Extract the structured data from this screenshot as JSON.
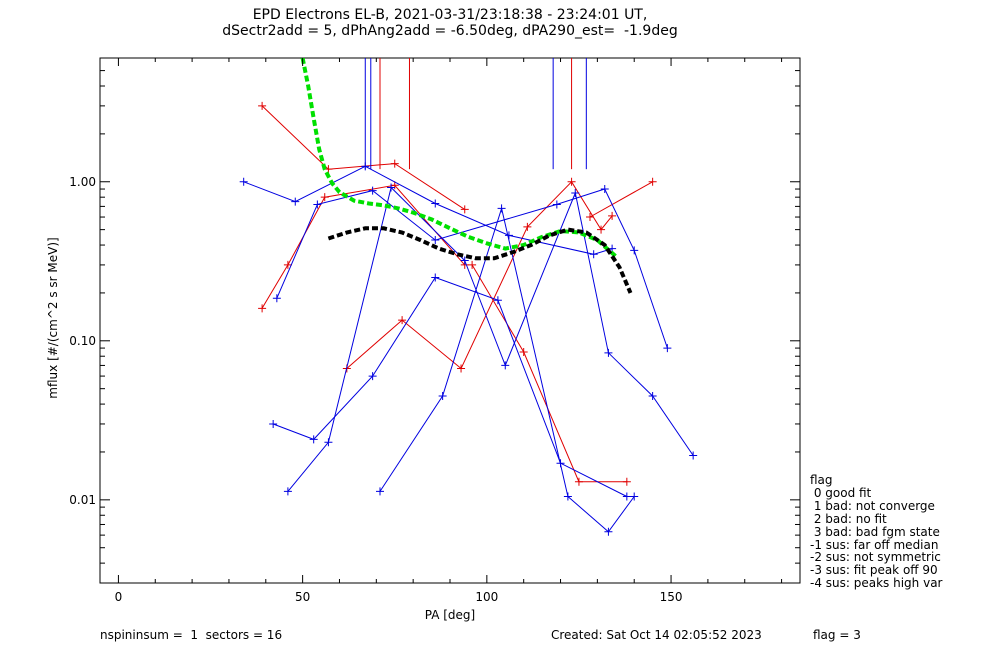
{
  "title_line1": "EPD Electrons EL-B, 2021-03-31/23:18:38 - 23:24:01 UT,",
  "title_line2": "dSectr2add = 5, dPhAng2add = -6.50deg, dPA290_est=  -1.9deg",
  "footer": {
    "left": "nspininsum =  1  sectors = 16",
    "created": "Created: Sat Oct 14 02:05:52 2023",
    "flag": "flag = 3"
  },
  "legend": {
    "title": "flag",
    "items": [
      " 0 good fit",
      " 1 bad: not converge",
      " 2 bad: no fit",
      " 3 bad: bad fgm state",
      "-1 sus: far off median",
      "-2 sus: not symmetric",
      "-3 sus: fit peak off 90",
      "-4 sus: peaks high var"
    ]
  },
  "chart_data": {
    "type": "line",
    "xlabel": "PA [deg]",
    "ylabel": "mflux [#/(cm^2 s sr MeV)]",
    "xlim": [
      -5,
      185
    ],
    "ylim": [
      0.003,
      6.0
    ],
    "yscale": "log",
    "xticks": [
      0,
      50,
      100,
      150
    ],
    "yticks": [
      {
        "value": 0.01,
        "label": "0.01"
      },
      {
        "value": 0.1,
        "label": "0.10"
      },
      {
        "value": 1.0,
        "label": "1.00"
      }
    ],
    "colors": {
      "red": "#e00000",
      "blue": "#0000e0",
      "green": "#00e000",
      "black": "#000000"
    },
    "series": [
      {
        "color": "red",
        "x": [
          39,
          46,
          56,
          75,
          94
        ],
        "y": [
          0.16,
          0.3,
          0.8,
          0.95,
          0.3
        ]
      },
      {
        "color": "red",
        "x": [
          39,
          57,
          75,
          94
        ],
        "y": [
          3.0,
          1.2,
          1.3,
          0.67
        ]
      },
      {
        "color": "red",
        "x": [
          62,
          77,
          93,
          111,
          123,
          131,
          134
        ],
        "y": [
          0.067,
          0.135,
          0.067,
          0.52,
          1.0,
          0.5,
          0.61
        ]
      },
      {
        "color": "red",
        "x": [
          96,
          110,
          125,
          138
        ],
        "y": [
          0.3,
          0.085,
          0.013,
          0.013
        ]
      },
      {
        "color": "red",
        "x": [
          128,
          145
        ],
        "y": [
          0.6,
          1.0
        ]
      },
      {
        "color": "blue",
        "x": [
          34,
          48,
          67,
          86,
          106,
          129,
          134
        ],
        "y": [
          1.0,
          0.75,
          1.25,
          0.73,
          0.46,
          0.35,
          0.38
        ]
      },
      {
        "color": "blue",
        "x": [
          43,
          54,
          69,
          86,
          119,
          132,
          140,
          149
        ],
        "y": [
          0.185,
          0.72,
          0.88,
          0.43,
          0.72,
          0.9,
          0.37,
          0.09
        ]
      },
      {
        "color": "blue",
        "x": [
          42,
          53,
          69,
          86,
          103,
          120,
          138
        ],
        "y": [
          0.03,
          0.024,
          0.06,
          0.25,
          0.18,
          0.017,
          0.0105
        ]
      },
      {
        "color": "blue",
        "x": [
          46,
          57,
          74,
          94,
          105,
          124,
          133,
          145,
          156
        ],
        "y": [
          0.0113,
          0.023,
          0.92,
          0.32,
          0.07,
          0.85,
          0.084,
          0.045,
          0.019
        ]
      },
      {
        "color": "blue",
        "x": [
          71,
          88,
          104,
          122,
          133,
          140
        ],
        "y": [
          0.0113,
          0.045,
          0.68,
          0.0105,
          0.0063,
          0.0105
        ]
      },
      {
        "color": "green",
        "dashed": true,
        "x": [
          50,
          51.5,
          53,
          54.5,
          56,
          58,
          60,
          64,
          68,
          72,
          76,
          80,
          85,
          90,
          95,
          100,
          105,
          110,
          115,
          120,
          125,
          130,
          135
        ],
        "y": [
          6.0,
          4.0,
          2.5,
          1.6,
          1.2,
          0.98,
          0.86,
          0.76,
          0.73,
          0.71,
          0.68,
          0.64,
          0.58,
          0.51,
          0.45,
          0.41,
          0.38,
          0.4,
          0.45,
          0.49,
          0.48,
          0.43,
          0.34
        ]
      },
      {
        "color": "black",
        "dashed": true,
        "x": [
          57,
          62,
          67,
          72,
          77,
          82,
          87,
          92,
          97,
          102,
          107,
          112,
          117,
          122,
          127,
          132,
          136,
          139
        ],
        "y": [
          0.44,
          0.48,
          0.51,
          0.51,
          0.48,
          0.43,
          0.38,
          0.35,
          0.33,
          0.33,
          0.36,
          0.4,
          0.46,
          0.5,
          0.48,
          0.4,
          0.29,
          0.2
        ]
      },
      {
        "color": "blue",
        "vline": true,
        "x": [
          67,
          68.5,
          118,
          127
        ],
        "y_bottom": 1.2
      },
      {
        "color": "red",
        "vline": true,
        "x": [
          71,
          79,
          123
        ],
        "y_bottom": 1.2
      }
    ]
  }
}
